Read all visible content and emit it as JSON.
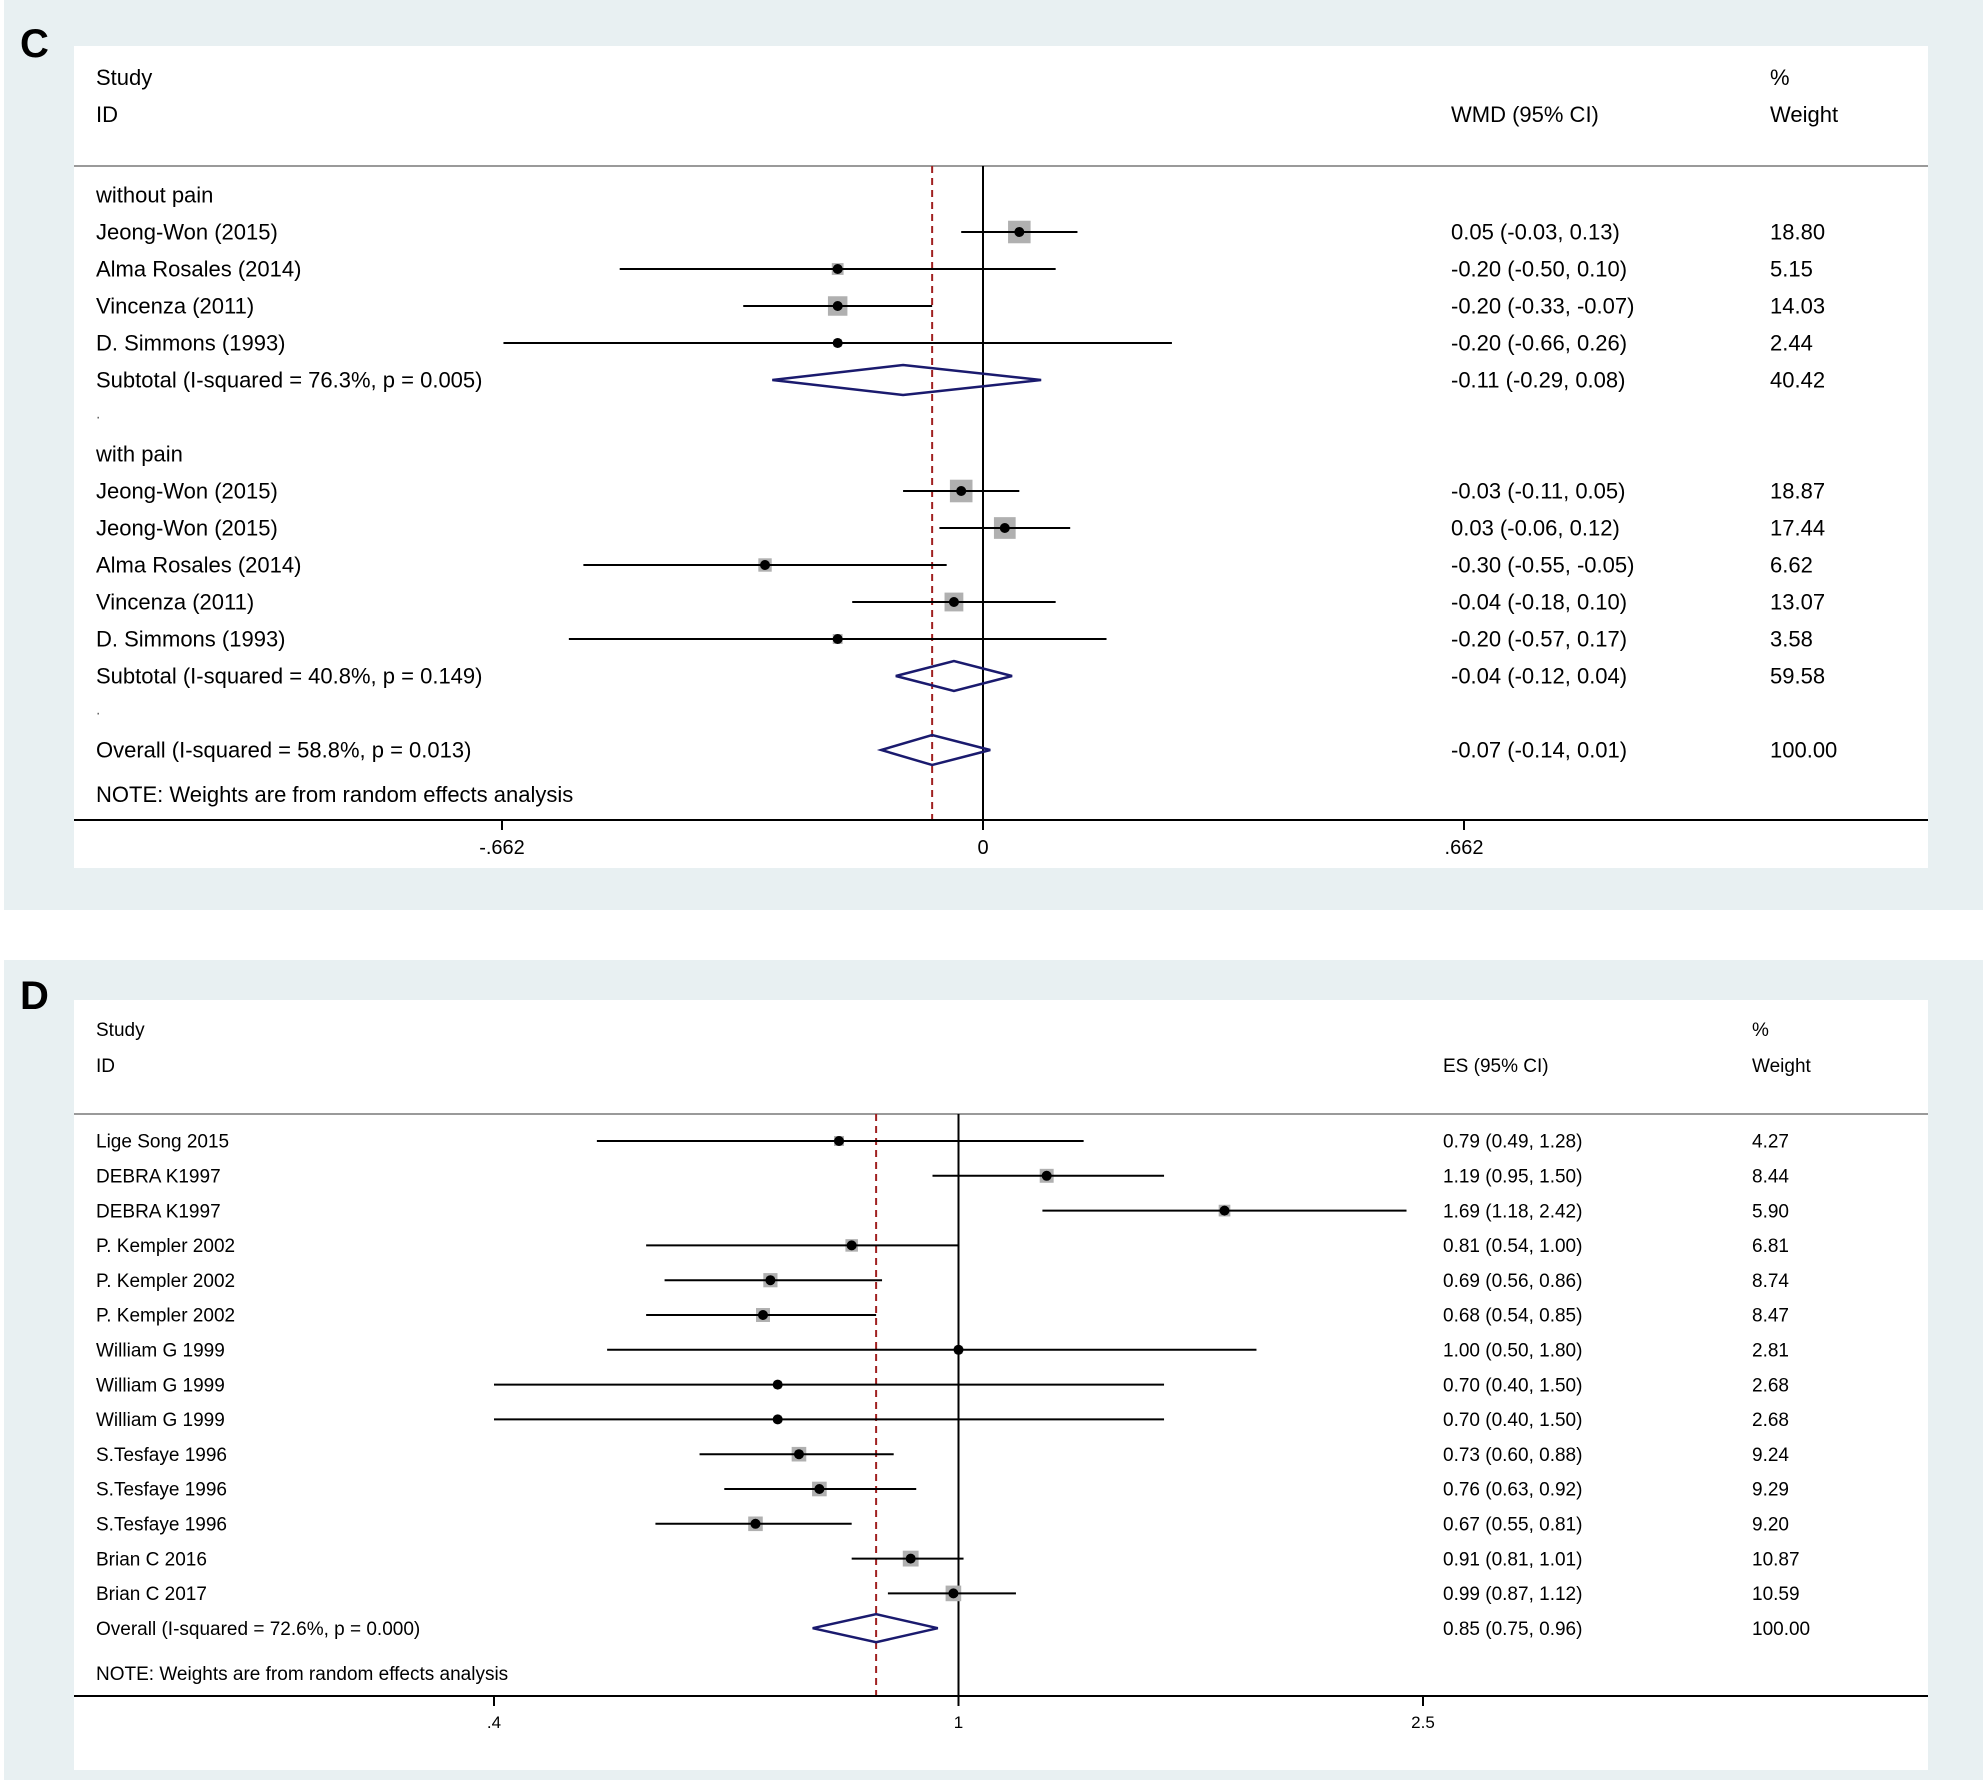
{
  "chart_data": [
    {
      "panel_label": "C",
      "type": "forest",
      "header": {
        "col1_line1": "Study",
        "col1_line2": "ID",
        "col2_line2": "WMD (95% CI)",
        "col3_line1": "%",
        "col3_line2": "Weight"
      },
      "rows": [
        {
          "kind": "group",
          "label": "without pain"
        },
        {
          "kind": "study",
          "label": "Jeong-Won (2015)",
          "est": 0.05,
          "lo": -0.03,
          "hi": 0.13,
          "ci_text": "0.05 (-0.03, 0.13)",
          "weight": 18.8,
          "weight_text": "18.80"
        },
        {
          "kind": "study",
          "label": "Alma Rosales (2014)",
          "est": -0.2,
          "lo": -0.5,
          "hi": 0.1,
          "ci_text": "-0.20 (-0.50, 0.10)",
          "weight": 5.15,
          "weight_text": "5.15"
        },
        {
          "kind": "study",
          "label": "Vincenza (2011)",
          "est": -0.2,
          "lo": -0.33,
          "hi": -0.07,
          "ci_text": "-0.20 (-0.33, -0.07)",
          "weight": 14.03,
          "weight_text": "14.03"
        },
        {
          "kind": "study",
          "label": "D. Simmons (1993)",
          "est": -0.2,
          "lo": -0.66,
          "hi": 0.26,
          "ci_text": "-0.20 (-0.66, 0.26)",
          "weight": 2.44,
          "weight_text": "2.44"
        },
        {
          "kind": "subtotal",
          "label": "Subtotal  (I-squared = 76.3%, p = 0.005)",
          "est": -0.11,
          "lo": -0.29,
          "hi": 0.08,
          "ci_text": "-0.11 (-0.29, 0.08)",
          "weight_text": "40.42"
        },
        {
          "kind": "dot",
          "label": "."
        },
        {
          "kind": "group",
          "label": "with pain"
        },
        {
          "kind": "study",
          "label": "Jeong-Won (2015)",
          "est": -0.03,
          "lo": -0.11,
          "hi": 0.05,
          "ci_text": "-0.03 (-0.11, 0.05)",
          "weight": 18.87,
          "weight_text": "18.87"
        },
        {
          "kind": "study",
          "label": "Jeong-Won (2015)",
          "est": 0.03,
          "lo": -0.06,
          "hi": 0.12,
          "ci_text": "0.03 (-0.06, 0.12)",
          "weight": 17.44,
          "weight_text": "17.44"
        },
        {
          "kind": "study",
          "label": "Alma Rosales (2014)",
          "est": -0.3,
          "lo": -0.55,
          "hi": -0.05,
          "ci_text": "-0.30 (-0.55, -0.05)",
          "weight": 6.62,
          "weight_text": "6.62"
        },
        {
          "kind": "study",
          "label": "Vincenza (2011)",
          "est": -0.04,
          "lo": -0.18,
          "hi": 0.1,
          "ci_text": "-0.04 (-0.18, 0.10)",
          "weight": 13.07,
          "weight_text": "13.07"
        },
        {
          "kind": "study",
          "label": "D. Simmons (1993)",
          "est": -0.2,
          "lo": -0.57,
          "hi": 0.17,
          "ci_text": "-0.20 (-0.57, 0.17)",
          "weight": 3.58,
          "weight_text": "3.58"
        },
        {
          "kind": "subtotal",
          "label": "Subtotal  (I-squared = 40.8%, p = 0.149)",
          "est": -0.04,
          "lo": -0.12,
          "hi": 0.04,
          "ci_text": "-0.04 (-0.12, 0.04)",
          "weight_text": "59.58"
        },
        {
          "kind": "dot",
          "label": "."
        },
        {
          "kind": "overall",
          "label": "Overall  (I-squared = 58.8%, p = 0.013)",
          "est": -0.07,
          "lo": -0.14,
          "hi": 0.01,
          "ci_text": "-0.07 (-0.14, 0.01)",
          "weight_text": "100.00"
        }
      ],
      "note": "NOTE: Weights are from random effects analysis",
      "null_value": 0,
      "pooled_line": -0.07,
      "x_range": [
        -0.662,
        0.662
      ],
      "x_ticks": [
        -0.662,
        0,
        0.662
      ],
      "x_tick_labels": [
        "-.662",
        "0",
        ".662"
      ],
      "log_scale": false
    },
    {
      "panel_label": "D",
      "type": "forest",
      "header": {
        "col1_line1": "Study",
        "col1_line2": "ID",
        "col2_line2": "ES (95% CI)",
        "col3_line1": "%",
        "col3_line2": "Weight"
      },
      "rows": [
        {
          "kind": "study",
          "label": "Lige Song 2015",
          "est": 0.79,
          "lo": 0.49,
          "hi": 1.28,
          "ci_text": "0.79 (0.49, 1.28)",
          "weight": 4.27,
          "weight_text": "4.27"
        },
        {
          "kind": "study",
          "label": "DEBRA K1997",
          "est": 1.19,
          "lo": 0.95,
          "hi": 1.5,
          "ci_text": "1.19 (0.95, 1.50)",
          "weight": 8.44,
          "weight_text": "8.44"
        },
        {
          "kind": "study",
          "label": "DEBRA K1997",
          "est": 1.69,
          "lo": 1.18,
          "hi": 2.42,
          "ci_text": "1.69 (1.18, 2.42)",
          "weight": 5.9,
          "weight_text": "5.90"
        },
        {
          "kind": "study",
          "label": "P. Kempler 2002",
          "est": 0.81,
          "lo": 0.54,
          "hi": 1.0,
          "ci_text": "0.81 (0.54, 1.00)",
          "weight": 6.81,
          "weight_text": "6.81"
        },
        {
          "kind": "study",
          "label": "P. Kempler 2002",
          "est": 0.69,
          "lo": 0.56,
          "hi": 0.86,
          "ci_text": "0.69 (0.56, 0.86)",
          "weight": 8.74,
          "weight_text": "8.74"
        },
        {
          "kind": "study",
          "label": "P. Kempler 2002",
          "est": 0.68,
          "lo": 0.54,
          "hi": 0.85,
          "ci_text": "0.68 (0.54, 0.85)",
          "weight": 8.47,
          "weight_text": "8.47"
        },
        {
          "kind": "study",
          "label": "William G 1999",
          "est": 1.0,
          "lo": 0.5,
          "hi": 1.8,
          "ci_text": "1.00 (0.50, 1.80)",
          "weight": 2.81,
          "weight_text": "2.81"
        },
        {
          "kind": "study",
          "label": "William G 1999",
          "est": 0.7,
          "lo": 0.4,
          "hi": 1.5,
          "ci_text": "0.70 (0.40, 1.50)",
          "weight": 2.68,
          "weight_text": "2.68"
        },
        {
          "kind": "study",
          "label": "William G 1999",
          "est": 0.7,
          "lo": 0.4,
          "hi": 1.5,
          "ci_text": "0.70 (0.40, 1.50)",
          "weight": 2.68,
          "weight_text": "2.68"
        },
        {
          "kind": "study",
          "label": "S.Tesfaye 1996",
          "est": 0.73,
          "lo": 0.6,
          "hi": 0.88,
          "ci_text": "0.73 (0.60, 0.88)",
          "weight": 9.24,
          "weight_text": "9.24"
        },
        {
          "kind": "study",
          "label": "S.Tesfaye 1996",
          "est": 0.76,
          "lo": 0.63,
          "hi": 0.92,
          "ci_text": "0.76 (0.63, 0.92)",
          "weight": 9.29,
          "weight_text": "9.29"
        },
        {
          "kind": "study",
          "label": "S.Tesfaye 1996",
          "est": 0.67,
          "lo": 0.55,
          "hi": 0.81,
          "ci_text": "0.67 (0.55, 0.81)",
          "weight": 9.2,
          "weight_text": "9.20"
        },
        {
          "kind": "study",
          "label": "Brian C 2016",
          "est": 0.91,
          "lo": 0.81,
          "hi": 1.01,
          "ci_text": "0.91 (0.81, 1.01)",
          "weight": 10.87,
          "weight_text": "10.87"
        },
        {
          "kind": "study",
          "label": "Brian C 2017",
          "est": 0.99,
          "lo": 0.87,
          "hi": 1.12,
          "ci_text": "0.99 (0.87, 1.12)",
          "weight": 10.59,
          "weight_text": "10.59"
        },
        {
          "kind": "overall",
          "label": "Overall  (I-squared = 72.6%, p = 0.000)",
          "est": 0.85,
          "lo": 0.75,
          "hi": 0.96,
          "ci_text": "0.85 (0.75, 0.96)",
          "weight_text": "100.00"
        }
      ],
      "note": "NOTE: Weights are from random effects analysis",
      "null_value": 1,
      "pooled_line": 0.85,
      "x_range": [
        0.4,
        2.5
      ],
      "x_ticks": [
        0.4,
        1,
        2.5
      ],
      "x_tick_labels": [
        ".4",
        "1",
        "2.5"
      ],
      "log_scale": true
    }
  ],
  "colors": {
    "panel_background": "#e8f0f2",
    "marker_box": "#b0b0b0",
    "diamond": "#1a1a6e",
    "pooled_dashed_line": "#a02020",
    "axis": "#000000"
  }
}
